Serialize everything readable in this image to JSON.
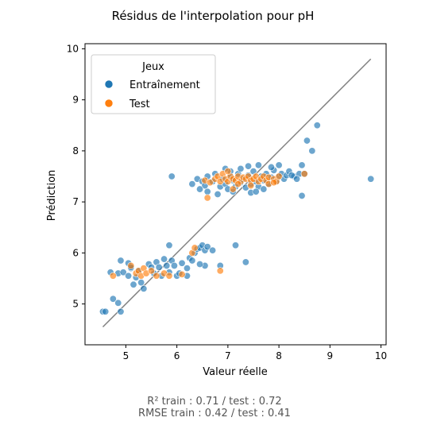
{
  "chart_data": {
    "type": "scatter",
    "title": "Résidus de l'interpolation pour pH",
    "xlabel": "Valeur réelle",
    "ylabel": "Prédiction",
    "xlim": [
      4.2,
      10.1
    ],
    "ylim": [
      4.2,
      10.1
    ],
    "xticks": [
      5,
      6,
      7,
      8,
      9,
      10
    ],
    "yticks": [
      5,
      6,
      7,
      8,
      9,
      10
    ],
    "grid": false,
    "legend": {
      "title": "Jeux",
      "placement": "top-left"
    },
    "reference_line": {
      "from": [
        4.55,
        4.55
      ],
      "to": [
        9.8,
        9.8
      ],
      "color": "#808080"
    },
    "series": [
      {
        "name": "Entraînement",
        "color": "#1f77b4",
        "points": [
          [
            4.55,
            4.85
          ],
          [
            4.6,
            4.85
          ],
          [
            4.75,
            5.1
          ],
          [
            4.85,
            5.02
          ],
          [
            4.9,
            4.85
          ],
          [
            4.7,
            5.62
          ],
          [
            4.85,
            5.6
          ],
          [
            4.95,
            5.62
          ],
          [
            5.05,
            5.55
          ],
          [
            5.1,
            5.7
          ],
          [
            5.2,
            5.52
          ],
          [
            5.25,
            5.65
          ],
          [
            5.15,
            5.38
          ],
          [
            5.35,
            5.3
          ],
          [
            5.3,
            5.42
          ],
          [
            4.9,
            5.85
          ],
          [
            5.05,
            5.8
          ],
          [
            5.1,
            5.72
          ],
          [
            5.45,
            5.78
          ],
          [
            5.5,
            5.72
          ],
          [
            5.6,
            5.82
          ],
          [
            5.65,
            5.72
          ],
          [
            5.75,
            5.88
          ],
          [
            5.8,
            5.75
          ],
          [
            5.9,
            5.85
          ],
          [
            5.95,
            5.75
          ],
          [
            5.85,
            5.62
          ],
          [
            5.7,
            5.55
          ],
          [
            5.55,
            5.6
          ],
          [
            6.0,
            5.55
          ],
          [
            6.1,
            5.8
          ],
          [
            6.2,
            5.7
          ],
          [
            6.25,
            5.9
          ],
          [
            6.3,
            5.85
          ],
          [
            6.35,
            6.0
          ],
          [
            6.4,
            6.08
          ],
          [
            6.45,
            6.1
          ],
          [
            6.5,
            6.15
          ],
          [
            6.55,
            6.05
          ],
          [
            6.6,
            6.12
          ],
          [
            6.7,
            6.05
          ],
          [
            6.55,
            5.75
          ],
          [
            6.45,
            5.78
          ],
          [
            6.85,
            5.75
          ],
          [
            7.15,
            6.15
          ],
          [
            7.35,
            5.82
          ],
          [
            5.85,
            6.15
          ],
          [
            6.05,
            5.6
          ],
          [
            6.2,
            5.55
          ],
          [
            5.9,
            7.5
          ],
          [
            6.3,
            7.35
          ],
          [
            6.4,
            7.45
          ],
          [
            6.5,
            7.4
          ],
          [
            6.55,
            7.32
          ],
          [
            6.6,
            7.5
          ],
          [
            6.7,
            7.4
          ],
          [
            6.75,
            7.55
          ],
          [
            6.85,
            7.3
          ],
          [
            6.9,
            7.45
          ],
          [
            6.95,
            7.35
          ],
          [
            7.0,
            7.25
          ],
          [
            7.05,
            7.5
          ],
          [
            7.1,
            7.42
          ],
          [
            7.15,
            7.3
          ],
          [
            7.2,
            7.55
          ],
          [
            7.25,
            7.38
          ],
          [
            7.3,
            7.45
          ],
          [
            7.35,
            7.28
          ],
          [
            7.4,
            7.52
          ],
          [
            7.45,
            7.35
          ],
          [
            7.5,
            7.6
          ],
          [
            7.55,
            7.4
          ],
          [
            7.6,
            7.3
          ],
          [
            7.65,
            7.5
          ],
          [
            7.7,
            7.42
          ],
          [
            7.75,
            7.55
          ],
          [
            7.8,
            7.35
          ],
          [
            7.85,
            7.48
          ],
          [
            7.9,
            7.62
          ],
          [
            7.95,
            7.4
          ],
          [
            8.0,
            7.5
          ],
          [
            8.05,
            7.55
          ],
          [
            8.1,
            7.45
          ],
          [
            8.15,
            7.52
          ],
          [
            8.2,
            7.6
          ],
          [
            8.3,
            7.5
          ],
          [
            8.4,
            7.55
          ],
          [
            8.45,
            7.72
          ],
          [
            8.5,
            7.55
          ],
          [
            7.25,
            7.65
          ],
          [
            7.4,
            7.7
          ],
          [
            7.6,
            7.72
          ],
          [
            7.85,
            7.68
          ],
          [
            8.0,
            7.72
          ],
          [
            7.1,
            7.2
          ],
          [
            7.45,
            7.18
          ],
          [
            7.7,
            7.25
          ],
          [
            6.6,
            7.2
          ],
          [
            6.8,
            7.15
          ],
          [
            8.45,
            7.12
          ],
          [
            8.55,
            8.2
          ],
          [
            8.65,
            8.0
          ],
          [
            8.75,
            8.5
          ],
          [
            9.8,
            7.45
          ],
          [
            7.05,
            7.6
          ],
          [
            6.95,
            7.65
          ],
          [
            6.45,
            7.25
          ],
          [
            7.55,
            7.2
          ],
          [
            8.25,
            7.52
          ],
          [
            8.35,
            7.45
          ]
        ]
      },
      {
        "name": "Test",
        "color": "#ff7f0e",
        "points": [
          [
            4.75,
            5.55
          ],
          [
            5.2,
            5.6
          ],
          [
            5.25,
            5.65
          ],
          [
            5.3,
            5.55
          ],
          [
            5.35,
            5.7
          ],
          [
            5.4,
            5.6
          ],
          [
            5.5,
            5.65
          ],
          [
            5.6,
            5.55
          ],
          [
            5.75,
            5.6
          ],
          [
            5.85,
            5.55
          ],
          [
            5.1,
            5.75
          ],
          [
            6.1,
            5.58
          ],
          [
            6.3,
            6.0
          ],
          [
            6.35,
            6.1
          ],
          [
            6.85,
            5.65
          ],
          [
            6.55,
            7.42
          ],
          [
            6.65,
            7.38
          ],
          [
            6.75,
            7.45
          ],
          [
            6.8,
            7.5
          ],
          [
            6.85,
            7.4
          ],
          [
            6.9,
            7.55
          ],
          [
            6.95,
            7.45
          ],
          [
            7.0,
            7.4
          ],
          [
            7.05,
            7.5
          ],
          [
            7.1,
            7.45
          ],
          [
            7.15,
            7.42
          ],
          [
            7.2,
            7.5
          ],
          [
            7.25,
            7.4
          ],
          [
            7.3,
            7.48
          ],
          [
            7.35,
            7.45
          ],
          [
            7.4,
            7.5
          ],
          [
            7.45,
            7.42
          ],
          [
            7.5,
            7.45
          ],
          [
            7.55,
            7.5
          ],
          [
            7.6,
            7.4
          ],
          [
            7.65,
            7.45
          ],
          [
            7.7,
            7.5
          ],
          [
            7.75,
            7.42
          ],
          [
            7.8,
            7.48
          ],
          [
            7.9,
            7.45
          ],
          [
            7.95,
            7.4
          ],
          [
            8.0,
            7.5
          ],
          [
            7.0,
            7.6
          ],
          [
            7.2,
            7.35
          ],
          [
            7.45,
            7.32
          ],
          [
            6.6,
            7.08
          ],
          [
            7.1,
            7.25
          ],
          [
            7.8,
            7.35
          ],
          [
            7.9,
            7.38
          ],
          [
            8.5,
            7.55
          ]
        ]
      }
    ]
  },
  "footer": {
    "line1": "R² train : 0.71 / test : 0.72",
    "line2": "RMSE train : 0.42 / test : 0.41"
  }
}
